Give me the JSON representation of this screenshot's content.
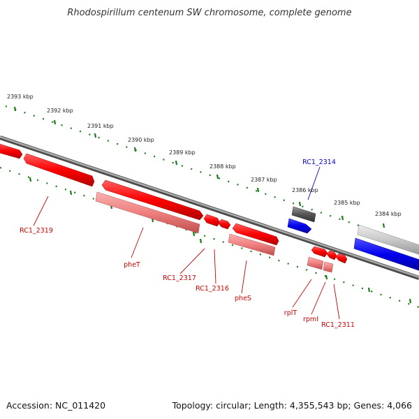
{
  "title": "Rhodospirillum centenum SW chromosome, complete genome",
  "footer": {
    "accession": "Accession: NC_011420",
    "stats": "Topology: circular; Length: 4,355,543 bp; Genes: 4,066"
  },
  "colors": {
    "forward_gene": "#ff0000",
    "reverse_gene": "#f08080",
    "highlight_forward": "#0000ee",
    "highlight_reverse": "#555555",
    "label_red": "#cc0000",
    "label_blue": "#0000cc",
    "tick": "#1a7a1a",
    "backbone": "#888888"
  },
  "kbp_labels": [
    "2393 kbp",
    "2392 kbp",
    "2391 kbp",
    "2390 kbp",
    "2389 kbp",
    "2388 kbp",
    "2387 kbp",
    "2386 kbp",
    "2385 kbp",
    "2384 kbp"
  ],
  "gene_labels": {
    "rc1_2319": "RC1_2319",
    "phet": "pheT",
    "rc1_2317": "RC1_2317",
    "rc1_2316": "RC1_2316",
    "phes": "pheS",
    "rc1_2314": "RC1_2314",
    "rplt": "rplT",
    "rpmi": "rpmI",
    "rc1_2311": "RC1_2311"
  }
}
